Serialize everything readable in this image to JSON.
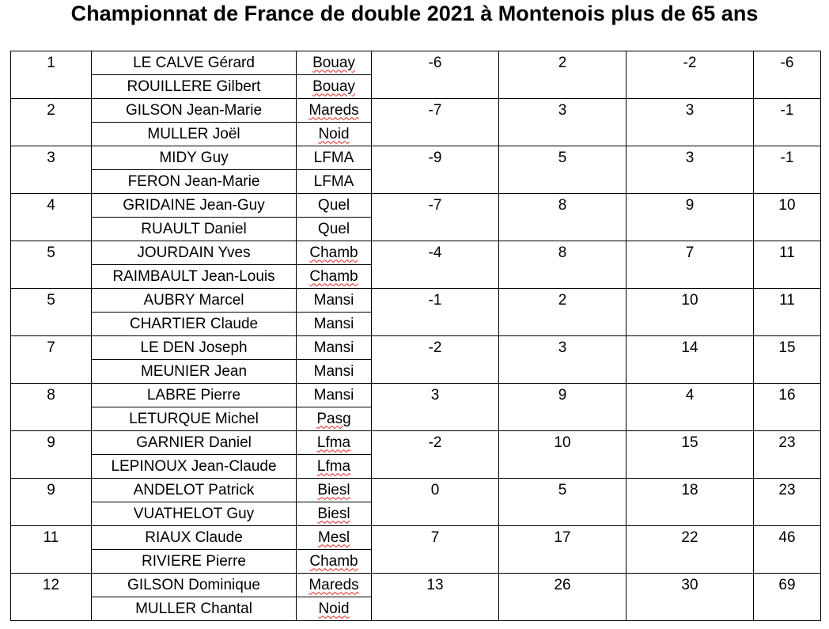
{
  "title": "Championnat de France de double 2021 à Montenois plus de 65 ans",
  "colors": {
    "spellcheck_underline": "#e02020",
    "border": "#000000"
  },
  "rows": [
    {
      "rank": "1",
      "players": [
        {
          "name": "LE CALVE Gérard",
          "club": "Bouay",
          "flag": true
        },
        {
          "name": "ROUILLERE Gilbert",
          "club": "Bouay",
          "flag": true
        }
      ],
      "scores": [
        "-6",
        "2",
        "-2",
        "-6"
      ]
    },
    {
      "rank": "2",
      "players": [
        {
          "name": "GILSON Jean-Marie",
          "club": "Mareds",
          "flag": true
        },
        {
          "name": "MULLER Joël",
          "club": "Noid",
          "flag": true
        }
      ],
      "scores": [
        "-7",
        "3",
        "3",
        "-1"
      ]
    },
    {
      "rank": "3",
      "players": [
        {
          "name": "MIDY Guy",
          "club": "LFMA",
          "flag": false
        },
        {
          "name": "FERON Jean-Marie",
          "club": "LFMA",
          "flag": false
        }
      ],
      "scores": [
        "-9",
        "5",
        "3",
        "-1"
      ]
    },
    {
      "rank": "4",
      "players": [
        {
          "name": "GRIDAINE Jean-Guy",
          "club": "Quel",
          "flag": false
        },
        {
          "name": "RUAULT Daniel",
          "club": "Quel",
          "flag": false
        }
      ],
      "scores": [
        "-7",
        "8",
        "9",
        "10"
      ]
    },
    {
      "rank": "5",
      "players": [
        {
          "name": "JOURDAIN Yves",
          "club": "Chamb",
          "flag": true
        },
        {
          "name": "RAIMBAULT Jean-Louis",
          "club": "Chamb",
          "flag": true
        }
      ],
      "scores": [
        "-4",
        "8",
        "7",
        "11"
      ]
    },
    {
      "rank": "5",
      "players": [
        {
          "name": "AUBRY Marcel",
          "club": "Mansi",
          "flag": false
        },
        {
          "name": "CHARTIER Claude",
          "club": "Mansi",
          "flag": false
        }
      ],
      "scores": [
        "-1",
        "2",
        "10",
        "11"
      ]
    },
    {
      "rank": "7",
      "players": [
        {
          "name": "LE DEN Joseph",
          "club": "Mansi",
          "flag": false
        },
        {
          "name": "MEUNIER Jean",
          "club": "Mansi",
          "flag": false
        }
      ],
      "scores": [
        "-2",
        "3",
        "14",
        "15"
      ]
    },
    {
      "rank": "8",
      "players": [
        {
          "name": "LABRE Pierre",
          "club": "Mansi",
          "flag": false
        },
        {
          "name": "LETURQUE Michel",
          "club": "Pasg",
          "flag": true
        }
      ],
      "scores": [
        "3",
        "9",
        "4",
        "16"
      ]
    },
    {
      "rank": "9",
      "players": [
        {
          "name": "GARNIER Daniel",
          "club": "Lfma",
          "flag": true
        },
        {
          "name": "LEPINOUX Jean-Claude",
          "club": "Lfma",
          "flag": true
        }
      ],
      "scores": [
        "-2",
        "10",
        "15",
        "23"
      ]
    },
    {
      "rank": "9",
      "players": [
        {
          "name": "ANDELOT Patrick",
          "club": "Biesl",
          "flag": true
        },
        {
          "name": "VUATHELOT Guy",
          "club": "Biesl",
          "flag": true
        }
      ],
      "scores": [
        "0",
        "5",
        "18",
        "23"
      ]
    },
    {
      "rank": "11",
      "players": [
        {
          "name": "RIAUX Claude",
          "club": "Mesl",
          "flag": true
        },
        {
          "name": "RIVIERE Pierre",
          "club": "Chamb",
          "flag": true
        }
      ],
      "scores": [
        "7",
        "17",
        "22",
        "46"
      ]
    },
    {
      "rank": "12",
      "players": [
        {
          "name": "GILSON Dominique",
          "club": "Mareds",
          "flag": true
        },
        {
          "name": "MULLER Chantal",
          "club": "Noid",
          "flag": true
        }
      ],
      "scores": [
        "13",
        "26",
        "30",
        "69"
      ]
    }
  ]
}
